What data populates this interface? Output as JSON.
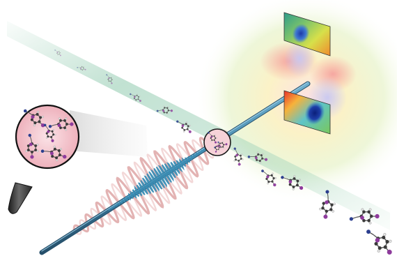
{
  "figure": {
    "description_visible_text": "",
    "colors": {
      "molecular_beam": "#7fbf9f",
      "probe_beam": "#3f86a8",
      "probe_beam_dark": "#2a5d7a",
      "pump_wave": "#d99a9a",
      "magnifier_fill": "#f2c4cc",
      "halo_red": "#f6a4a4",
      "halo_yellow": "#fbf6b8",
      "halo_green": "#d8efc0",
      "atom_carbon": "#3a3a3a",
      "atom_hydrogen": "#e8e8e8",
      "atom_iodine": "#8e3b9c",
      "atom_nitrogen": "#2c3f8f"
    },
    "icons": [
      "magnifying-glass-icon",
      "molecule-icon",
      "detector-screen-icon"
    ]
  }
}
